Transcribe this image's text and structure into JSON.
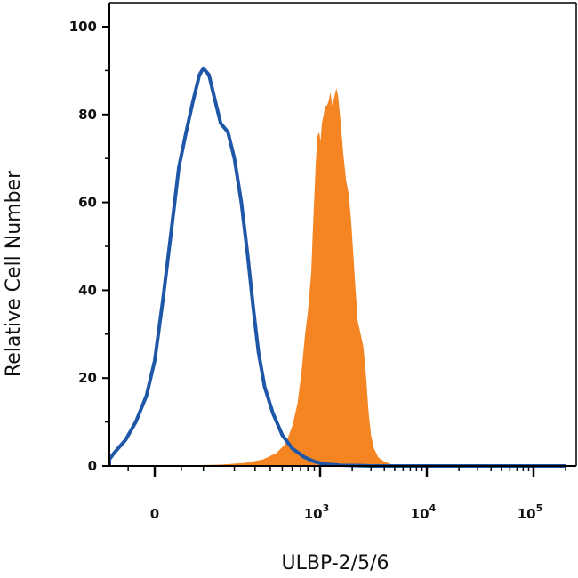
{
  "chart_data": {
    "type": "area",
    "xlabel": "ULBP-2/5/6",
    "ylabel": "Relative Cell Number",
    "x_scale": "biexponential (linear near 0, log above)",
    "x_ticks": [
      {
        "value": 0,
        "label": "0",
        "exp": ""
      },
      {
        "value": 1000,
        "label": "10",
        "exp": "3"
      },
      {
        "value": 10000,
        "label": "10",
        "exp": "4"
      },
      {
        "value": 100000,
        "label": "10",
        "exp": "5"
      }
    ],
    "ylim": [
      0,
      100
    ],
    "y_ticks": [
      0,
      20,
      40,
      60,
      80,
      100
    ],
    "grid": false,
    "legend": "none",
    "series": [
      {
        "style": "outline",
        "color": "#1f57a8",
        "points": [
          [
            -200,
            0.2
          ],
          [
            -150,
            0.6
          ],
          [
            -110,
            1.5
          ],
          [
            -80,
            3
          ],
          [
            -55,
            6
          ],
          [
            -35,
            10
          ],
          [
            -15,
            16
          ],
          [
            0,
            24
          ],
          [
            15,
            38
          ],
          [
            30,
            53
          ],
          [
            45,
            68
          ],
          [
            60,
            76
          ],
          [
            75,
            83
          ],
          [
            90,
            89
          ],
          [
            100,
            90.5
          ],
          [
            115,
            89
          ],
          [
            130,
            84
          ],
          [
            150,
            78
          ],
          [
            175,
            76
          ],
          [
            200,
            70
          ],
          [
            230,
            60
          ],
          [
            260,
            48
          ],
          [
            290,
            36
          ],
          [
            320,
            26
          ],
          [
            360,
            18
          ],
          [
            420,
            12
          ],
          [
            500,
            7
          ],
          [
            600,
            4
          ],
          [
            750,
            2
          ],
          [
            900,
            1
          ],
          [
            1100,
            0.4
          ],
          [
            1500,
            0.2
          ],
          [
            3000,
            0
          ],
          [
            200000,
            0
          ]
        ]
      },
      {
        "style": "filled",
        "color": "#f58522",
        "points": [
          [
            0,
            0
          ],
          [
            150,
            0.3
          ],
          [
            250,
            0.7
          ],
          [
            350,
            1.5
          ],
          [
            450,
            3
          ],
          [
            530,
            5
          ],
          [
            600,
            9
          ],
          [
            660,
            14
          ],
          [
            710,
            21
          ],
          [
            760,
            30
          ],
          [
            800,
            35
          ],
          [
            850,
            44
          ],
          [
            880,
            55
          ],
          [
            920,
            68
          ],
          [
            950,
            75
          ],
          [
            980,
            76
          ],
          [
            1010,
            74
          ],
          [
            1040,
            78
          ],
          [
            1080,
            80
          ],
          [
            1120,
            82
          ],
          [
            1160,
            82
          ],
          [
            1200,
            83
          ],
          [
            1250,
            85
          ],
          [
            1300,
            82
          ],
          [
            1360,
            84
          ],
          [
            1420,
            86
          ],
          [
            1480,
            84
          ],
          [
            1560,
            78
          ],
          [
            1650,
            71
          ],
          [
            1750,
            65
          ],
          [
            1850,
            62
          ],
          [
            1950,
            56
          ],
          [
            2050,
            48
          ],
          [
            2150,
            40
          ],
          [
            2250,
            33
          ],
          [
            2400,
            30
          ],
          [
            2550,
            27
          ],
          [
            2700,
            20
          ],
          [
            2850,
            12
          ],
          [
            3000,
            7
          ],
          [
            3200,
            4
          ],
          [
            3500,
            2
          ],
          [
            4000,
            1
          ],
          [
            4500,
            0.5
          ],
          [
            5000,
            0
          ]
        ]
      }
    ]
  }
}
